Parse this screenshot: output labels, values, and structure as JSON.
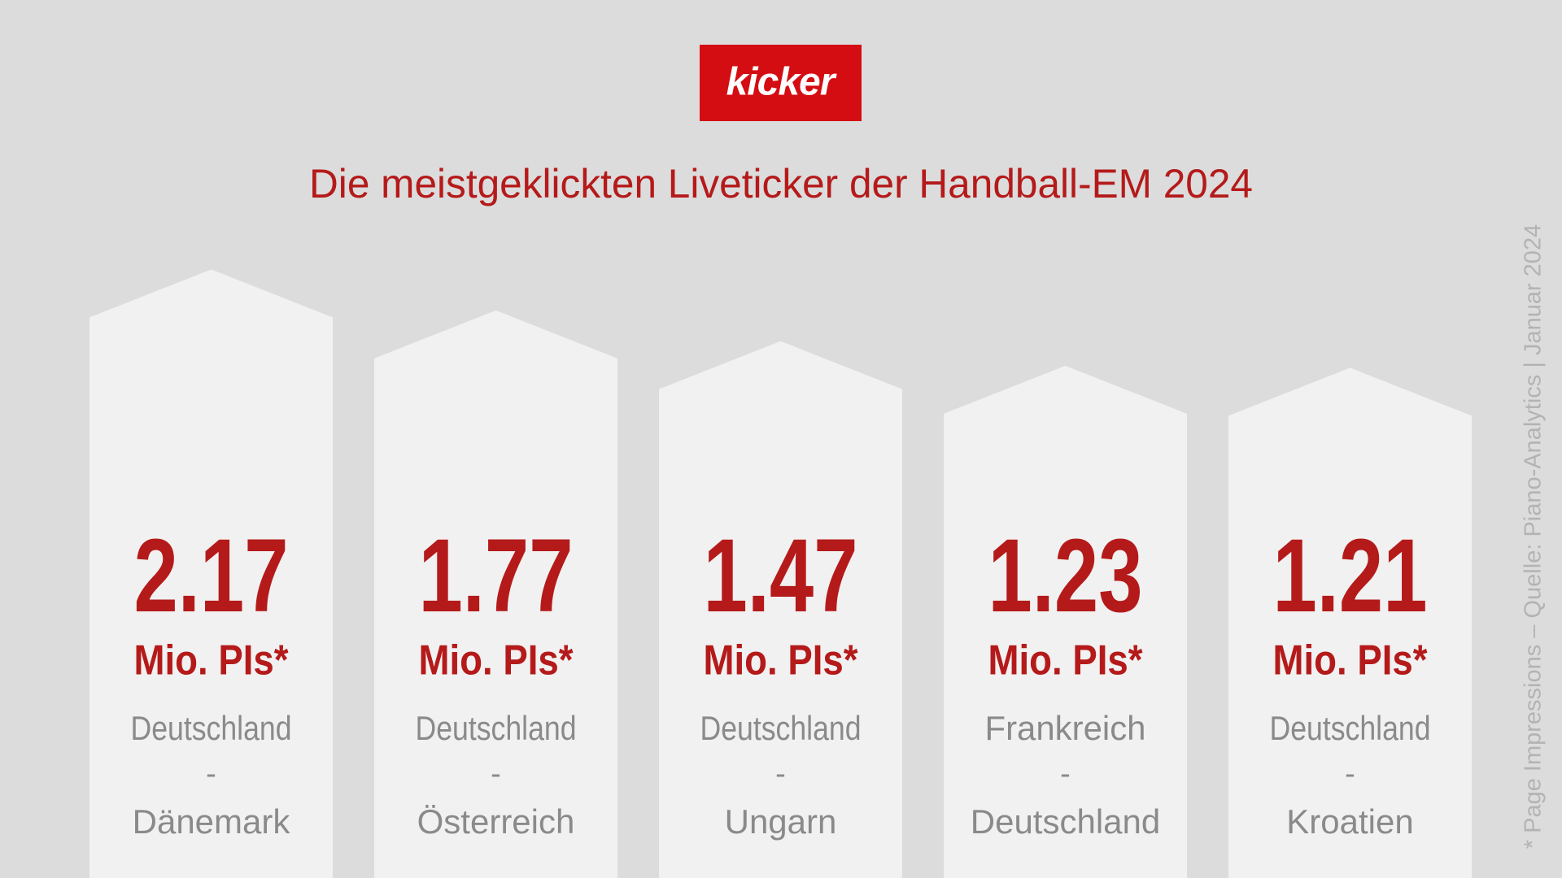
{
  "logo": "kicker",
  "chart_data": {
    "type": "bar",
    "title": "Die meistgeklickten Liveticker der Handball-EM 2024",
    "teams_home": [
      "Deutschland",
      "Deutschland",
      "Deutschland",
      "Frankreich",
      "Deutschland"
    ],
    "separator": "-",
    "teams_away": [
      "Dänemark",
      "Österreich",
      "Ungarn",
      "Deutschland",
      "Kroatien"
    ],
    "values": [
      2.17,
      1.77,
      1.47,
      1.23,
      1.21
    ],
    "unit_label": "Mio. PIs*",
    "ylim": [
      -3.77,
      4.8
    ],
    "color": "#f1f1f1",
    "value_color": "#b51a1a",
    "footnote": "* Page Impressions – Quelle: Piano-Analytics | Januar 2024"
  }
}
